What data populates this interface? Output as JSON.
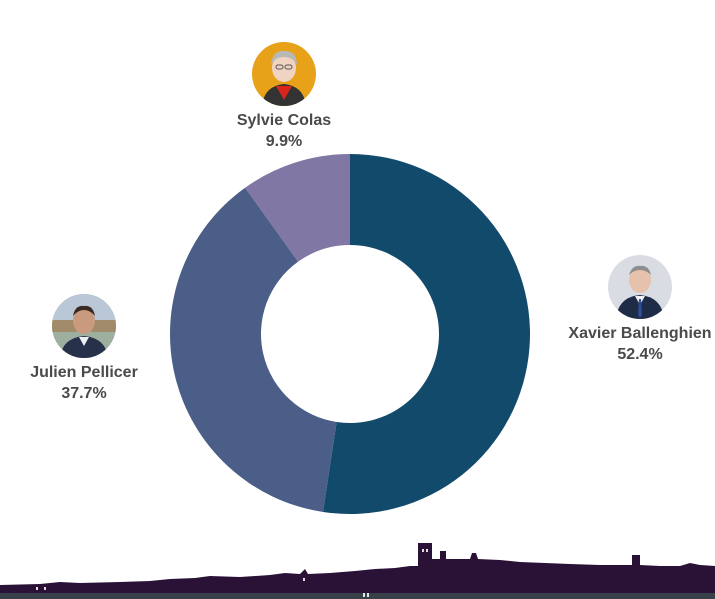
{
  "chart_data": {
    "type": "pie",
    "style": "donut",
    "title": "",
    "slices": [
      {
        "name": "Xavier Ballenghien",
        "value": 52.4,
        "label": "52.4%",
        "color": "#124a6b"
      },
      {
        "name": "Julien Pellicer",
        "value": 37.7,
        "label": "37.7%",
        "color": "#4b5e88"
      },
      {
        "name": "Sylvie Colas",
        "value": 9.9,
        "label": "9.9%",
        "color": "#8077a4"
      }
    ]
  },
  "candidates": {
    "colas": {
      "name": "Sylvie Colas",
      "pct": "9.9%",
      "avatar_bg": "#e8a21a",
      "avatar_icon": "candidate-photo"
    },
    "ballenghien": {
      "name": "Xavier Ballenghien",
      "pct": "52.4%",
      "avatar_bg": "#d9dde3",
      "avatar_icon": "candidate-photo"
    },
    "pellicer": {
      "name": "Julien Pellicer",
      "pct": "37.7%",
      "avatar_bg": "#9db0a0",
      "avatar_icon": "candidate-photo"
    }
  },
  "decor": {
    "skyline_color": "#2a1236",
    "skyline_icon": "city-skyline-silhouette"
  }
}
